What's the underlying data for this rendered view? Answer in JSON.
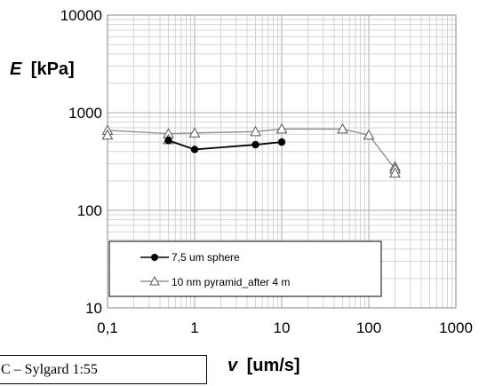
{
  "chart_data": {
    "type": "scatter",
    "x_scale": "log",
    "y_scale": "log",
    "xlim": [
      0.1,
      1000
    ],
    "ylim": [
      10,
      10000
    ],
    "grid": true,
    "legend_position": "bottom-left",
    "ylabel_var": "E",
    "ylabel_unit": "[kPa]",
    "xlabel_var": "v",
    "xlabel_unit": "[um/s]",
    "x_ticks": [
      "0,1",
      "1",
      "10",
      "100",
      "1000"
    ],
    "y_ticks": [
      "10",
      "100",
      "1000",
      "10000"
    ],
    "series": [
      {
        "name": "7,5 um sphere",
        "marker": "circle-filled",
        "color": "#000000",
        "x": [
          0.5,
          1,
          5,
          10
        ],
        "y": [
          520,
          420,
          470,
          500
        ]
      },
      {
        "name": "10 nm pyramid_after 4 m",
        "marker": "triangle-open",
        "color": "#808080",
        "line_points": {
          "x": [
            0.1,
            0.5,
            1,
            5,
            10,
            50,
            100,
            200
          ],
          "y": [
            660,
            610,
            620,
            640,
            680,
            680,
            590,
            265
          ]
        },
        "x": [
          0.1,
          0.1,
          0.5,
          0.5,
          1,
          5,
          10,
          50,
          100,
          200,
          200,
          200
        ],
        "y": [
          660,
          590,
          610,
          530,
          620,
          640,
          680,
          680,
          590,
          280,
          265,
          240
        ]
      }
    ]
  },
  "caption": "C – Sylgard 1:55"
}
